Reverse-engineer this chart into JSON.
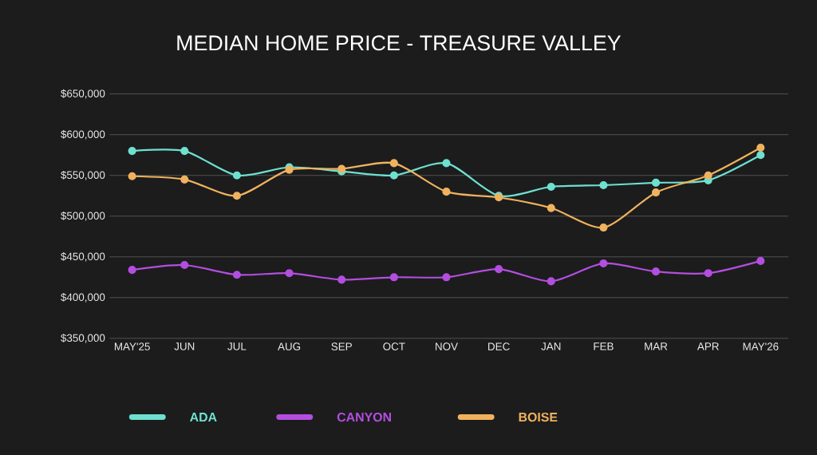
{
  "chart_data": {
    "type": "line",
    "title": "MEDIAN HOME PRICE - TREASURE VALLEY",
    "categories": [
      "MAY'25",
      "JUN",
      "JUL",
      "AUG",
      "SEP",
      "OCT",
      "NOV",
      "DEC",
      "JAN",
      "FEB",
      "MAR",
      "APR",
      "MAY'26"
    ],
    "series": [
      {
        "name": "ADA",
        "color": "#6ee0d0",
        "values": [
          580000,
          580000,
          550000,
          560000,
          555000,
          550000,
          565000,
          525000,
          536000,
          538000,
          541000,
          544000,
          575000
        ]
      },
      {
        "name": "CANYON",
        "color": "#b34ee0",
        "values": [
          434000,
          440000,
          428000,
          430000,
          422000,
          425000,
          425000,
          435000,
          420000,
          442000,
          432000,
          430000,
          445000
        ]
      },
      {
        "name": "BOISE",
        "color": "#f0b25f",
        "values": [
          549000,
          545000,
          525000,
          557000,
          558000,
          565000,
          530000,
          523000,
          510000,
          486000,
          529000,
          550000,
          584000
        ]
      }
    ],
    "ylim": [
      350000,
      650000
    ],
    "yticks": [
      {
        "value": 350000,
        "label": "$350,000"
      },
      {
        "value": 400000,
        "label": "$400,000"
      },
      {
        "value": 450000,
        "label": "$450,000"
      },
      {
        "value": 500000,
        "label": "$500,000"
      },
      {
        "value": 550000,
        "label": "$550,000"
      },
      {
        "value": 600000,
        "label": "$600,000"
      },
      {
        "value": 650000,
        "label": "$650,000"
      }
    ],
    "grid": "y",
    "legend": "bottom",
    "marker": "circle",
    "line_style": "solid"
  }
}
